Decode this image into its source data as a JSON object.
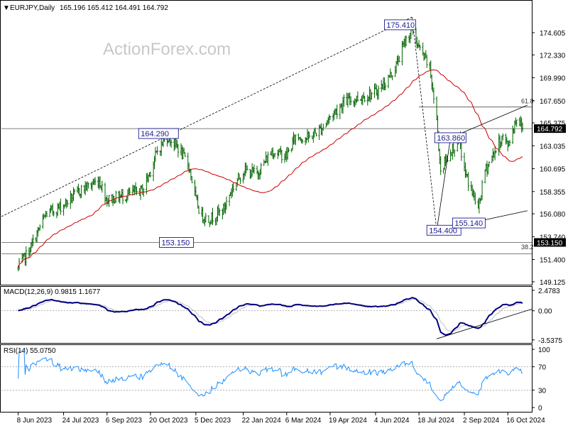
{
  "header": {
    "arrow": "▼",
    "symbol": "EURJPY,Daily",
    "ohlc": "165.196 165.412 164.491 164.792"
  },
  "watermark": "ActionForex.com",
  "chart_data": [
    {
      "type": "candlestick",
      "symbol": "EURJPY",
      "timeframe": "Daily",
      "ohlc_last": {
        "open": 165.196,
        "high": 165.412,
        "low": 164.491,
        "close": 164.792
      },
      "ylim": [
        148.9,
        177.8
      ],
      "yticks": [
        "174.605",
        "172.330",
        "169.990",
        "167.650",
        "165.375",
        "163.035",
        "160.695",
        "158.355",
        "156.080",
        "153.740",
        "151.400",
        "149.125"
      ],
      "xlabels": [
        "8 Jun 2023",
        "24 Jul 2023",
        "6 Sep 2023",
        "20 Oct 2023",
        "5 Dec 2023",
        "22 Jan 2024",
        "6 Mar 2024",
        "19 Apr 2024",
        "4 Jun 2024",
        "18 Jul 2024",
        "2 Sep 2024",
        "16 Oct 2024"
      ],
      "price_series": {
        "name": "",
        "x": [
          "2023-06-08",
          "2023-06-20",
          "2023-07-06",
          "2023-07-24",
          "2023-08-10",
          "2023-08-29",
          "2023-09-06",
          "2023-09-25",
          "2023-10-12",
          "2023-10-20",
          "2023-10-27",
          "2023-11-06",
          "2023-11-16",
          "2023-11-28",
          "2023-12-05",
          "2023-12-10",
          "2023-12-18",
          "2024-01-02",
          "2024-01-10",
          "2024-01-22",
          "2024-02-05",
          "2024-02-20",
          "2024-03-06",
          "2024-03-15",
          "2024-03-28",
          "2024-04-10",
          "2024-04-19",
          "2024-05-03",
          "2024-05-20",
          "2024-06-04",
          "2024-06-14",
          "2024-06-24",
          "2024-07-03",
          "2024-07-11",
          "2024-07-18",
          "2024-07-29",
          "2024-08-05",
          "2024-08-09",
          "2024-08-19",
          "2024-08-28",
          "2024-09-02",
          "2024-09-11",
          "2024-09-16",
          "2024-09-23",
          "2024-10-03",
          "2024-10-11",
          "2024-10-16",
          "2024-10-25",
          "2024-10-31"
        ],
        "values": [
          150.5,
          152.5,
          156.0,
          157.0,
          158.5,
          159.5,
          157.5,
          158.0,
          158.5,
          160.5,
          162.5,
          164.0,
          163.0,
          161.0,
          157.5,
          156.0,
          155.5,
          156.5,
          158.5,
          160.5,
          160.2,
          162.5,
          162.0,
          164.0,
          163.8,
          164.8,
          166.0,
          167.5,
          168.0,
          168.5,
          169.5,
          171.0,
          173.5,
          175.0,
          173.0,
          171.0,
          165.5,
          160.5,
          162.5,
          163.5,
          160.5,
          158.0,
          156.5,
          160.5,
          162.5,
          164.0,
          163.0,
          166.0,
          164.79
        ]
      },
      "moving_average": {
        "name": "",
        "color": "#cc0000"
      },
      "levels": [
        {
          "label": "164.290"
        },
        {
          "label": "175.410"
        },
        {
          "label": "163.860"
        },
        {
          "label": "154.400"
        },
        {
          "label": "155.140"
        },
        {
          "label": "153.150"
        }
      ],
      "fib_labels": [
        "61.8",
        "38.2"
      ],
      "price_tags": [
        {
          "value": "164.792",
          "bg": "#000000",
          "fg": "#ffffff"
        },
        {
          "value": "153.150",
          "bg": "#000000",
          "fg": "#ffffff"
        }
      ]
    },
    {
      "type": "line",
      "name": "MACD",
      "header": "MACD(12,26,9) 0.9815 1.1677",
      "yticks": [
        "2.4783",
        "0.00",
        "-3.5375"
      ],
      "ylim": [
        -3.9,
        2.9
      ],
      "series": [
        {
          "name": "MACD",
          "color": "#000080"
        },
        {
          "name": "Signal",
          "color": "#c0c0c0"
        }
      ]
    },
    {
      "type": "line",
      "name": "RSI",
      "header": "RSI(14) 55.0750",
      "yticks": [
        "100",
        "70",
        "30",
        "0"
      ],
      "ylim": [
        0,
        100
      ],
      "series": [
        {
          "name": "RSI",
          "color": "#1e90ff"
        }
      ]
    }
  ]
}
